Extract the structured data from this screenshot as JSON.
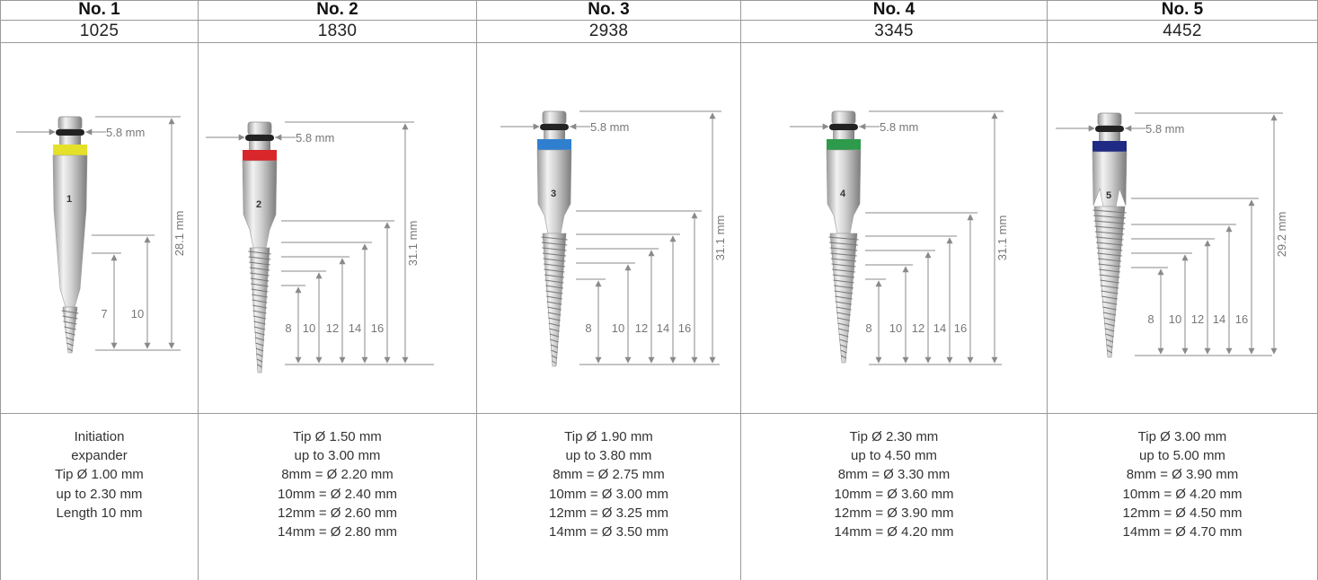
{
  "columns": [
    {
      "title": "No. 1",
      "code": "1025",
      "color_hex": "#e5e12b",
      "shaft_number": "1",
      "neck_label": "5.8 mm",
      "total_label": "28.1 mm",
      "depth_labels": [
        "7",
        "10"
      ],
      "spec_lines": [
        "Initiation",
        "expander",
        "Tip Ø 1.00 mm",
        "up to 2.30 mm",
        "Length 10 mm"
      ]
    },
    {
      "title": "No. 2",
      "code": "1830",
      "color_hex": "#d9262b",
      "shaft_number": "2",
      "neck_label": "5.8 mm",
      "total_label": "31.1 mm",
      "depth_labels": [
        "8",
        "10",
        "12",
        "14",
        "16"
      ],
      "spec_lines": [
        "Tip Ø 1.50 mm",
        "up to 3.00 mm",
        "8mm = Ø 2.20 mm",
        "10mm = Ø 2.40 mm",
        "12mm = Ø 2.60 mm",
        "14mm = Ø 2.80 mm"
      ]
    },
    {
      "title": "No. 3",
      "code": "2938",
      "color_hex": "#2f7fd0",
      "shaft_number": "3",
      "neck_label": "5.8 mm",
      "total_label": "31.1 mm",
      "depth_labels": [
        "8",
        "10",
        "12",
        "14",
        "16"
      ],
      "spec_lines": [
        "Tip Ø 1.90 mm",
        "up to 3.80 mm",
        "8mm = Ø 2.75 mm",
        "10mm = Ø 3.00 mm",
        "12mm = Ø 3.25 mm",
        "14mm = Ø 3.50 mm"
      ]
    },
    {
      "title": "No. 4",
      "code": "3345",
      "color_hex": "#2e9a4b",
      "shaft_number": "4",
      "neck_label": "5.8 mm",
      "total_label": "31.1 mm",
      "depth_labels": [
        "8",
        "10",
        "12",
        "14",
        "16"
      ],
      "spec_lines": [
        "Tip Ø 2.30 mm",
        "up to 4.50 mm",
        "8mm = Ø 3.30 mm",
        "10mm = Ø 3.60 mm",
        "12mm = Ø 3.90 mm",
        "14mm = Ø 4.20 mm"
      ]
    },
    {
      "title": "No. 5",
      "code": "4452",
      "color_hex": "#1f2a84",
      "shaft_number": "5",
      "neck_label": "5.8 mm",
      "total_label": "29.2 mm",
      "depth_labels": [
        "8",
        "10",
        "12",
        "14",
        "16"
      ],
      "spec_lines": [
        "Tip Ø 3.00 mm",
        "up to 5.00 mm",
        "8mm = Ø 3.90 mm",
        "10mm = Ø 4.20 mm",
        "12mm = Ø 4.50 mm",
        "14mm = Ø 4.70 mm"
      ]
    }
  ]
}
